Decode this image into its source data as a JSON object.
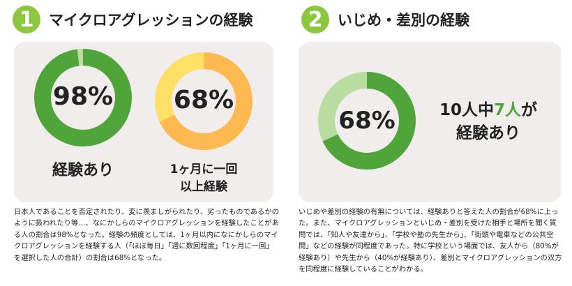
{
  "colors": {
    "badge": "#8dc63f",
    "green": "#4fa53a",
    "green_light": "#b9dca0",
    "orange": "#ffb950",
    "yellow": "#ffe066",
    "panel_bg": "#f0edec"
  },
  "section1": {
    "number": "1",
    "title": "マイクロアグレッションの経験",
    "caption_left": "経験あり",
    "caption_right_line1": "1ヶ月に一回",
    "caption_right_line2": "以上経験",
    "description": "日本人であることを否定されたり、変に羨ましがられたり、劣ったものであるかのように扱われたり等…、なにかしらのマイクロアグレッションを経験したことがある人の割合は98%となった。経験の頻度としては、1ヶ月以内になにかしらのマイクロアグレッションを経験する人（「ほぼ毎日」「週に数回程度」「1ヶ月に一回」を選択した人の合計）の割合は68%となった。"
  },
  "section2": {
    "number": "2",
    "title": "いじめ・差別の経験",
    "ratio_pre": "10人中",
    "ratio_highlight": "7人",
    "ratio_post": "が",
    "ratio_line2": "経験あり",
    "description": "いじめや差別の経験の有無については、経験ありと答えた人の割合が68%に上った。また、マイクロアグレッションといじめ・差別を受けた相手と場所を聞く質問では、「知人や友達から」、「学校や塾の先生から」、「街頭や電車などの公共空間」などの経験が同程度であった。特に学校という場面では、友人から（80%が経験あり）や先生から（40%が経験あり）、差別とマイクロアグレッションの双方を同程度に経験していることがわかる。"
  },
  "chart_data": [
    {
      "type": "pie",
      "subtype": "donut",
      "center_label": "98%",
      "caption": "経験あり",
      "values": [
        98,
        2
      ],
      "colors": [
        "#4fa53a",
        "#b9dca0"
      ]
    },
    {
      "type": "pie",
      "subtype": "donut",
      "center_label": "68%",
      "caption": "1ヶ月に一回以上経験",
      "values": [
        68,
        32
      ],
      "colors": [
        "#ffb950",
        "#ffe066"
      ]
    },
    {
      "type": "pie",
      "subtype": "donut",
      "center_label": "68%",
      "caption": "10人中7人が経験あり",
      "values": [
        68,
        32
      ],
      "colors": [
        "#4fa53a",
        "#b9dca0"
      ]
    }
  ]
}
